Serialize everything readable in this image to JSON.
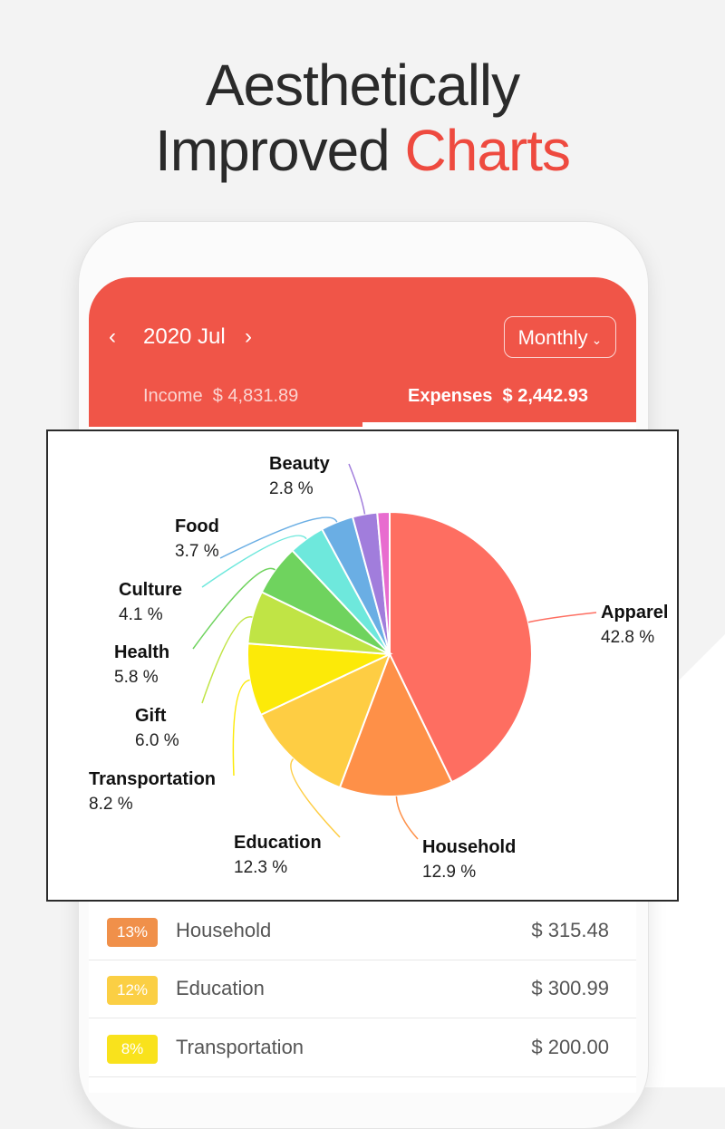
{
  "headline": {
    "line1": "Aesthetically",
    "line2_plain": "Improved ",
    "line2_accent": "Charts"
  },
  "header": {
    "prev_icon": "chevron-left-icon",
    "next_icon": "chevron-right-icon",
    "month": "2020 Jul",
    "period_button": "Monthly",
    "income_label": "Income",
    "income_value": "$ 4,831.89",
    "expenses_label": "Expenses",
    "expenses_value": "$ 2,442.93"
  },
  "colors": {
    "brand": "#f05548",
    "accent_text": "#ee4a3f"
  },
  "list": [
    {
      "pct": "13%",
      "label": "Household",
      "amount": "$ 315.48",
      "color": "#f0904a"
    },
    {
      "pct": "12%",
      "label": "Education",
      "amount": "$ 300.99",
      "color": "#fbcf44"
    },
    {
      "pct": "8%",
      "label": "Transportation",
      "amount": "$ 200.00",
      "color": "#f9e21c"
    }
  ],
  "chart_data": {
    "type": "pie",
    "title": "",
    "slices": [
      {
        "label": "Apparel",
        "value": 42.8,
        "display": "42.8 %",
        "color": "#fe6e61"
      },
      {
        "label": "Household",
        "value": 12.9,
        "display": "12.9 %",
        "color": "#fe9048"
      },
      {
        "label": "Education",
        "value": 12.3,
        "display": "12.3 %",
        "color": "#fecd43"
      },
      {
        "label": "Transportation",
        "value": 8.2,
        "display": "8.2 %",
        "color": "#fcea08"
      },
      {
        "label": "Gift",
        "value": 6.0,
        "display": "6.0 %",
        "color": "#c0e445"
      },
      {
        "label": "Health",
        "value": 5.8,
        "display": "5.8 %",
        "color": "#6fd35e"
      },
      {
        "label": "Culture",
        "value": 4.1,
        "display": "4.1 %",
        "color": "#6ee8dc"
      },
      {
        "label": "Food",
        "value": 3.7,
        "display": "3.7 %",
        "color": "#6aaee4"
      },
      {
        "label": "Beauty",
        "value": 2.8,
        "display": "2.8 %",
        "color": "#a17ddc"
      },
      {
        "label": "",
        "value": 1.4,
        "display": "",
        "color": "#e86ccf"
      }
    ]
  }
}
